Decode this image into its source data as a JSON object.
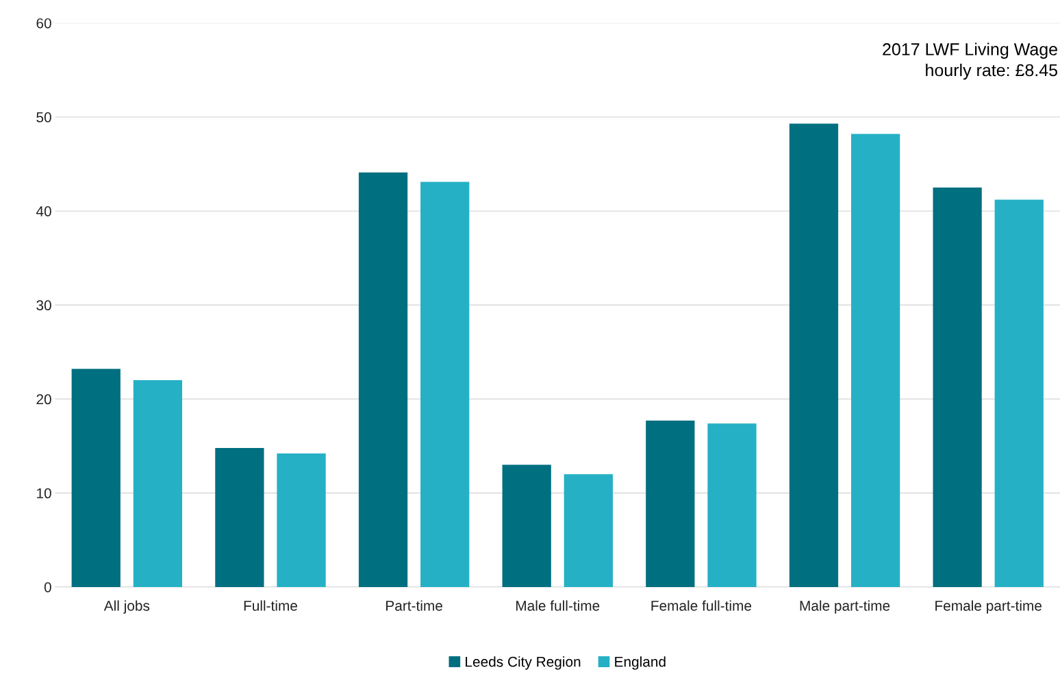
{
  "chart_data": {
    "type": "bar",
    "categories": [
      "All jobs",
      "Full-time",
      "Part-time",
      "Male full-time",
      "Female full-time",
      "Male part-time",
      "Female part-time"
    ],
    "series": [
      {
        "name": "Leeds City Region",
        "color": "#006f80",
        "values": [
          23.2,
          14.8,
          44.1,
          13.0,
          17.7,
          49.3,
          42.5
        ]
      },
      {
        "name": "England",
        "color": "#25b0c5",
        "values": [
          22.0,
          14.2,
          43.1,
          12.0,
          17.4,
          48.2,
          41.2
        ]
      }
    ],
    "ylim": [
      0,
      60
    ],
    "yticks": [
      0,
      10,
      20,
      30,
      40,
      50,
      60
    ],
    "grid": "y",
    "legend": "bottom",
    "annotations": [
      "2017 LWF Living Wage\nhourly rate: £8.45"
    ]
  }
}
